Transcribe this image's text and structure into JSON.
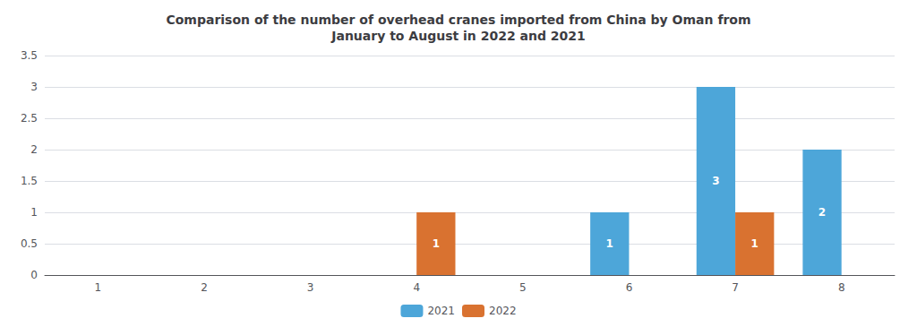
{
  "chart_data": {
    "type": "bar",
    "title": "Comparison of the number of overhead cranes imported from China by Oman from\nJanuary to August in 2022 and 2021",
    "categories": [
      "1",
      "2",
      "3",
      "4",
      "5",
      "6",
      "7",
      "8"
    ],
    "series": [
      {
        "name": "2021",
        "color": "#4da6d9",
        "values": [
          0,
          0,
          0,
          0,
          0,
          1,
          3,
          2
        ],
        "value_labels": [
          null,
          null,
          null,
          null,
          null,
          "1",
          "3",
          "2"
        ]
      },
      {
        "name": "2022",
        "color": "#d97230",
        "values": [
          0,
          0,
          0,
          1,
          0,
          0,
          1,
          0
        ],
        "value_labels": [
          null,
          null,
          null,
          "1",
          null,
          null,
          "1",
          null
        ]
      }
    ],
    "ylim": [
      0,
      3.5
    ],
    "yticks": [
      0,
      0.5,
      1,
      1.5,
      2,
      2.5,
      3,
      3.5
    ],
    "grid": true,
    "legend": "bottom",
    "data_labels": true
  }
}
